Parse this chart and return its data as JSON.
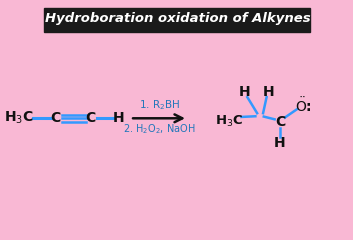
{
  "bg_color": "#F9B8D4",
  "title_text": "Hydroboration oxidation of Alkynes",
  "title_bg": "#1a1a1a",
  "title_color": "#ffffff",
  "bond_color": "#3399ff",
  "text_color": "#111111",
  "reagent_color": "#2277bb",
  "figsize": [
    3.53,
    2.4
  ],
  "dpi": 100,
  "xlim": [
    0,
    10
  ],
  "ylim": [
    0,
    7
  ]
}
